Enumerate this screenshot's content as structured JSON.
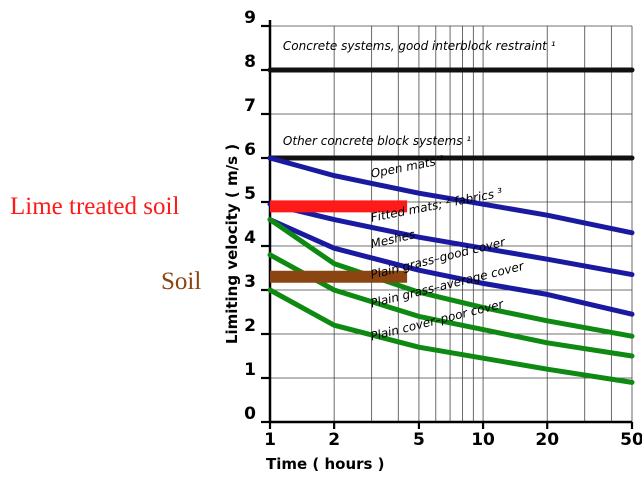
{
  "chart_data": {
    "type": "line",
    "xlabel": "Time ( hours )",
    "ylabel": "Limiting velocity ( m/s )",
    "xscale": "log",
    "xlim": [
      1,
      50
    ],
    "ylim": [
      0,
      9
    ],
    "xticks": [
      1,
      2,
      5,
      10,
      20,
      50
    ],
    "yticks": [
      0,
      1,
      2,
      3,
      4,
      5,
      6,
      7,
      8,
      9
    ],
    "grid": true,
    "series": [
      {
        "name": "Concrete systems, good interblock restraint ¹",
        "color": "#111111",
        "x": [
          1,
          50
        ],
        "y": [
          8.0,
          8.0
        ],
        "label_at": [
          1.15,
          8.45
        ],
        "label_rot": 0
      },
      {
        "name": "Other concrete block systems ¹",
        "color": "#111111",
        "x": [
          1,
          50
        ],
        "y": [
          6.0,
          6.0
        ],
        "label_at": [
          1.15,
          6.3
        ],
        "label_rot": 0
      },
      {
        "name": "Open mats ²",
        "color": "#1a1aa0",
        "x": [
          1,
          2,
          5,
          10,
          20,
          50
        ],
        "y": [
          6.0,
          5.6,
          5.2,
          4.95,
          4.7,
          4.3
        ],
        "label_at": [
          3.0,
          5.55
        ],
        "label_rot": -11
      },
      {
        "name": "Fitted mats; ² fabrics ³",
        "color": "#1a1aa0",
        "x": [
          1,
          2,
          5,
          10,
          20,
          50
        ],
        "y": [
          4.95,
          4.6,
          4.2,
          3.95,
          3.7,
          3.35
        ],
        "label_at": [
          3.0,
          4.55
        ],
        "label_rot": -11
      },
      {
        "name": "Meshes",
        "color": "#1a1aa0",
        "x": [
          1,
          2,
          5,
          10,
          20,
          50
        ],
        "y": [
          4.6,
          3.95,
          3.45,
          3.15,
          2.9,
          2.45
        ],
        "label_at": [
          3.0,
          3.95
        ],
        "label_rot": -13
      },
      {
        "name": "Plain grass–good cover",
        "color": "#0e8a12",
        "x": [
          1,
          2,
          5,
          10,
          20,
          50
        ],
        "y": [
          4.6,
          3.6,
          2.95,
          2.6,
          2.3,
          1.95
        ],
        "label_at": [
          3.0,
          3.25
        ],
        "label_rot": -14
      },
      {
        "name": "Plain grass–average cover",
        "color": "#0e8a12",
        "x": [
          1,
          2,
          5,
          10,
          20,
          50
        ],
        "y": [
          3.8,
          3.0,
          2.4,
          2.1,
          1.8,
          1.5
        ],
        "label_at": [
          3.0,
          2.6
        ],
        "label_rot": -14
      },
      {
        "name": "Plain cover–poor cover",
        "color": "#0e8a12",
        "x": [
          1,
          2,
          5,
          10,
          20,
          50
        ],
        "y": [
          3.0,
          2.2,
          1.7,
          1.45,
          1.2,
          0.9
        ],
        "label_at": [
          3.0,
          1.85
        ],
        "label_rot": -14
      }
    ],
    "annotations": [
      {
        "name": "Lime treated soil",
        "color": "#ff1a1a",
        "x": [
          1,
          4.4
        ],
        "y": 4.9
      },
      {
        "name": "Soil",
        "color": "#8b4513",
        "x": [
          1,
          4.4
        ],
        "y": 3.3
      }
    ]
  },
  "side_labels": {
    "lime": "Lime treated soil",
    "soil": "Soil"
  }
}
